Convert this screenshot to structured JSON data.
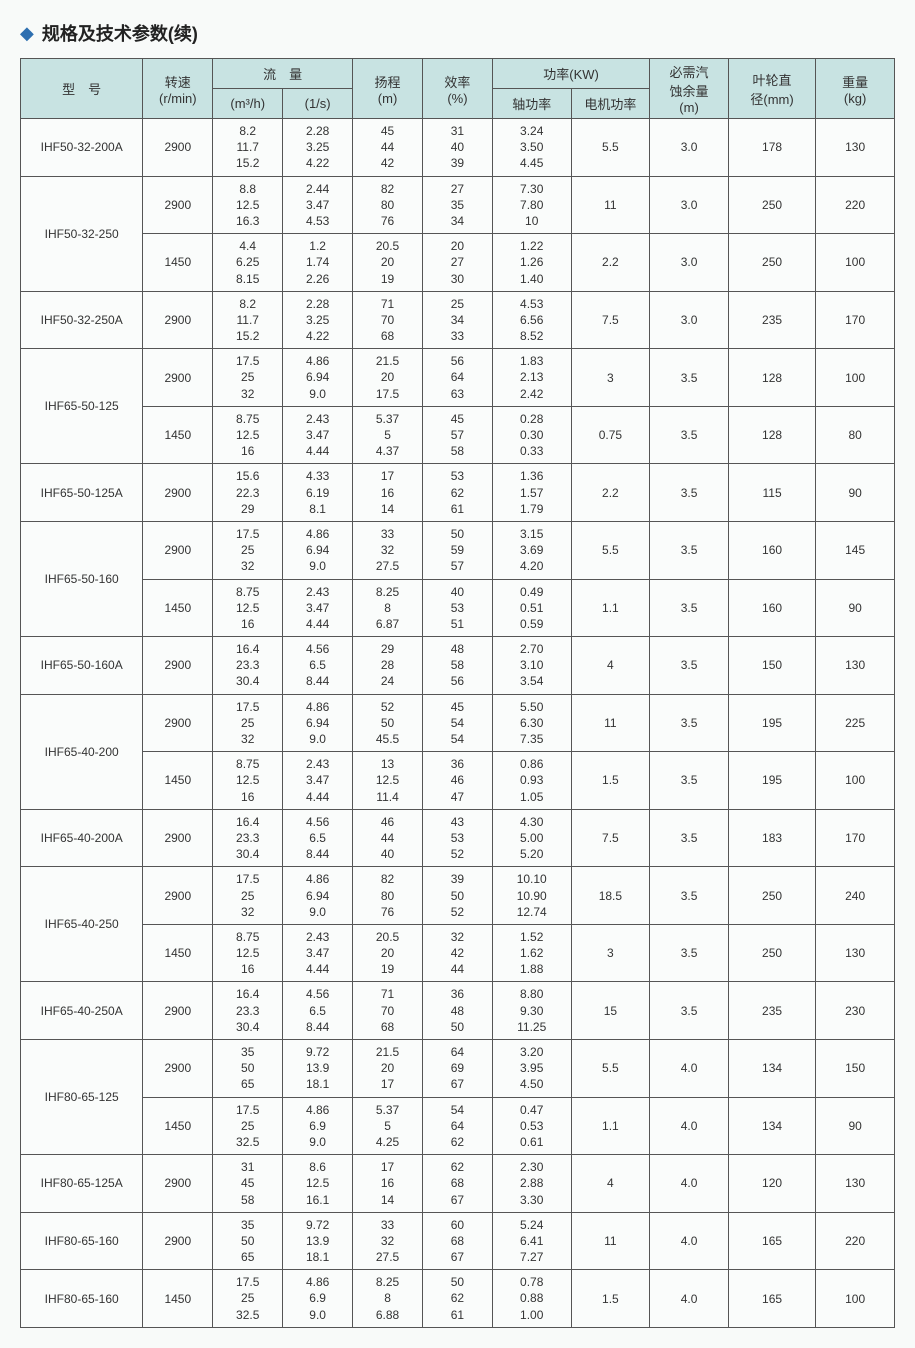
{
  "title": "规格及技术参数(续)",
  "headers": {
    "model": "型　号",
    "rpm": "转速\n(r/min)",
    "flow": "流　量",
    "flow_m3h": "(m³/h)",
    "flow_ls": "(1/s)",
    "head": "扬程\n(m)",
    "eff": "效率\n(%)",
    "power": "功率(KW)",
    "shaft": "轴功率",
    "motor": "电机功率",
    "npsh": "必需汽\n蚀余量\n(m)",
    "impeller": "叶轮直\n径(mm)",
    "weight": "重量\n(kg)"
  },
  "rows": [
    {
      "model": "IHF50-32-200A",
      "rpm": "2900",
      "m3h": [
        "8.2",
        "11.7",
        "15.2"
      ],
      "ls": [
        "2.28",
        "3.25",
        "4.22"
      ],
      "head": [
        "45",
        "44",
        "42"
      ],
      "eff": [
        "31",
        "40",
        "39"
      ],
      "shaft": [
        "3.24",
        "3.50",
        "4.45"
      ],
      "motor": "5.5",
      "npsh": "3.0",
      "imp": "178",
      "wt": "130"
    },
    {
      "model": "IHF50-32-250",
      "span": 2,
      "rpm": "2900",
      "m3h": [
        "8.8",
        "12.5",
        "16.3"
      ],
      "ls": [
        "2.44",
        "3.47",
        "4.53"
      ],
      "head": [
        "82",
        "80",
        "76"
      ],
      "eff": [
        "27",
        "35",
        "34"
      ],
      "shaft": [
        "7.30",
        "7.80",
        "10"
      ],
      "motor": "11",
      "npsh": "3.0",
      "imp": "250",
      "wt": "220"
    },
    {
      "rpm": "1450",
      "m3h": [
        "4.4",
        "6.25",
        "8.15"
      ],
      "ls": [
        "1.2",
        "1.74",
        "2.26"
      ],
      "head": [
        "20.5",
        "20",
        "19"
      ],
      "eff": [
        "20",
        "27",
        "30"
      ],
      "shaft": [
        "1.22",
        "1.26",
        "1.40"
      ],
      "motor": "2.2",
      "npsh": "3.0",
      "imp": "250",
      "wt": "100"
    },
    {
      "model": "IHF50-32-250A",
      "rpm": "2900",
      "m3h": [
        "8.2",
        "11.7",
        "15.2"
      ],
      "ls": [
        "2.28",
        "3.25",
        "4.22"
      ],
      "head": [
        "71",
        "70",
        "68"
      ],
      "eff": [
        "25",
        "34",
        "33"
      ],
      "shaft": [
        "4.53",
        "6.56",
        "8.52"
      ],
      "motor": "7.5",
      "npsh": "3.0",
      "imp": "235",
      "wt": "170"
    },
    {
      "model": "IHF65-50-125",
      "span": 2,
      "rpm": "2900",
      "m3h": [
        "17.5",
        "25",
        "32"
      ],
      "ls": [
        "4.86",
        "6.94",
        "9.0"
      ],
      "head": [
        "21.5",
        "20",
        "17.5"
      ],
      "eff": [
        "56",
        "64",
        "63"
      ],
      "shaft": [
        "1.83",
        "2.13",
        "2.42"
      ],
      "motor": "3",
      "npsh": "3.5",
      "imp": "128",
      "wt": "100"
    },
    {
      "rpm": "1450",
      "m3h": [
        "8.75",
        "12.5",
        "16"
      ],
      "ls": [
        "2.43",
        "3.47",
        "4.44"
      ],
      "head": [
        "5.37",
        "5",
        "4.37"
      ],
      "eff": [
        "45",
        "57",
        "58"
      ],
      "shaft": [
        "0.28",
        "0.30",
        "0.33"
      ],
      "motor": "0.75",
      "npsh": "3.5",
      "imp": "128",
      "wt": "80"
    },
    {
      "model": "IHF65-50-125A",
      "rpm": "2900",
      "m3h": [
        "15.6",
        "22.3",
        "29"
      ],
      "ls": [
        "4.33",
        "6.19",
        "8.1"
      ],
      "head": [
        "17",
        "16",
        "14"
      ],
      "eff": [
        "53",
        "62",
        "61"
      ],
      "shaft": [
        "1.36",
        "1.57",
        "1.79"
      ],
      "motor": "2.2",
      "npsh": "3.5",
      "imp": "115",
      "wt": "90"
    },
    {
      "model": "IHF65-50-160",
      "span": 2,
      "rpm": "2900",
      "m3h": [
        "17.5",
        "25",
        "32"
      ],
      "ls": [
        "4.86",
        "6.94",
        "9.0"
      ],
      "head": [
        "33",
        "32",
        "27.5"
      ],
      "eff": [
        "50",
        "59",
        "57"
      ],
      "shaft": [
        "3.15",
        "3.69",
        "4.20"
      ],
      "motor": "5.5",
      "npsh": "3.5",
      "imp": "160",
      "wt": "145"
    },
    {
      "rpm": "1450",
      "m3h": [
        "8.75",
        "12.5",
        "16"
      ],
      "ls": [
        "2.43",
        "3.47",
        "4.44"
      ],
      "head": [
        "8.25",
        "8",
        "6.87"
      ],
      "eff": [
        "40",
        "53",
        "51"
      ],
      "shaft": [
        "0.49",
        "0.51",
        "0.59"
      ],
      "motor": "1.1",
      "npsh": "3.5",
      "imp": "160",
      "wt": "90"
    },
    {
      "model": "IHF65-50-160A",
      "rpm": "2900",
      "m3h": [
        "16.4",
        "23.3",
        "30.4"
      ],
      "ls": [
        "4.56",
        "6.5",
        "8.44"
      ],
      "head": [
        "29",
        "28",
        "24"
      ],
      "eff": [
        "48",
        "58",
        "56"
      ],
      "shaft": [
        "2.70",
        "3.10",
        "3.54"
      ],
      "motor": "4",
      "npsh": "3.5",
      "imp": "150",
      "wt": "130"
    },
    {
      "model": "IHF65-40-200",
      "span": 2,
      "rpm": "2900",
      "m3h": [
        "17.5",
        "25",
        "32"
      ],
      "ls": [
        "4.86",
        "6.94",
        "9.0"
      ],
      "head": [
        "52",
        "50",
        "45.5"
      ],
      "eff": [
        "45",
        "54",
        "54"
      ],
      "shaft": [
        "5.50",
        "6.30",
        "7.35"
      ],
      "motor": "11",
      "npsh": "3.5",
      "imp": "195",
      "wt": "225"
    },
    {
      "rpm": "1450",
      "m3h": [
        "8.75",
        "12.5",
        "16"
      ],
      "ls": [
        "2.43",
        "3.47",
        "4.44"
      ],
      "head": [
        "13",
        "12.5",
        "11.4"
      ],
      "eff": [
        "36",
        "46",
        "47"
      ],
      "shaft": [
        "0.86",
        "0.93",
        "1.05"
      ],
      "motor": "1.5",
      "npsh": "3.5",
      "imp": "195",
      "wt": "100"
    },
    {
      "model": "IHF65-40-200A",
      "rpm": "2900",
      "m3h": [
        "16.4",
        "23.3",
        "30.4"
      ],
      "ls": [
        "4.56",
        "6.5",
        "8.44"
      ],
      "head": [
        "46",
        "44",
        "40"
      ],
      "eff": [
        "43",
        "53",
        "52"
      ],
      "shaft": [
        "4.30",
        "5.00",
        "5.20"
      ],
      "motor": "7.5",
      "npsh": "3.5",
      "imp": "183",
      "wt": "170"
    },
    {
      "model": "IHF65-40-250",
      "span": 2,
      "rpm": "2900",
      "m3h": [
        "17.5",
        "25",
        "32"
      ],
      "ls": [
        "4.86",
        "6.94",
        "9.0"
      ],
      "head": [
        "82",
        "80",
        "76"
      ],
      "eff": [
        "39",
        "50",
        "52"
      ],
      "shaft": [
        "10.10",
        "10.90",
        "12.74"
      ],
      "motor": "18.5",
      "npsh": "3.5",
      "imp": "250",
      "wt": "240"
    },
    {
      "rpm": "1450",
      "m3h": [
        "8.75",
        "12.5",
        "16"
      ],
      "ls": [
        "2.43",
        "3.47",
        "4.44"
      ],
      "head": [
        "20.5",
        "20",
        "19"
      ],
      "eff": [
        "32",
        "42",
        "44"
      ],
      "shaft": [
        "1.52",
        "1.62",
        "1.88"
      ],
      "motor": "3",
      "npsh": "3.5",
      "imp": "250",
      "wt": "130"
    },
    {
      "model": "IHF65-40-250A",
      "rpm": "2900",
      "m3h": [
        "16.4",
        "23.3",
        "30.4"
      ],
      "ls": [
        "4.56",
        "6.5",
        "8.44"
      ],
      "head": [
        "71",
        "70",
        "68"
      ],
      "eff": [
        "36",
        "48",
        "50"
      ],
      "shaft": [
        "8.80",
        "9.30",
        "11.25"
      ],
      "motor": "15",
      "npsh": "3.5",
      "imp": "235",
      "wt": "230"
    },
    {
      "model": "IHF80-65-125",
      "span": 2,
      "rpm": "2900",
      "m3h": [
        "35",
        "50",
        "65"
      ],
      "ls": [
        "9.72",
        "13.9",
        "18.1"
      ],
      "head": [
        "21.5",
        "20",
        "17"
      ],
      "eff": [
        "64",
        "69",
        "67"
      ],
      "shaft": [
        "3.20",
        "3.95",
        "4.50"
      ],
      "motor": "5.5",
      "npsh": "4.0",
      "imp": "134",
      "wt": "150"
    },
    {
      "rpm": "1450",
      "m3h": [
        "17.5",
        "25",
        "32.5"
      ],
      "ls": [
        "4.86",
        "6.9",
        "9.0"
      ],
      "head": [
        "5.37",
        "5",
        "4.25"
      ],
      "eff": [
        "54",
        "64",
        "62"
      ],
      "shaft": [
        "0.47",
        "0.53",
        "0.61"
      ],
      "motor": "1.1",
      "npsh": "4.0",
      "imp": "134",
      "wt": "90"
    },
    {
      "model": "IHF80-65-125A",
      "rpm": "2900",
      "m3h": [
        "31",
        "45",
        "58"
      ],
      "ls": [
        "8.6",
        "12.5",
        "16.1"
      ],
      "head": [
        "17",
        "16",
        "14"
      ],
      "eff": [
        "62",
        "68",
        "67"
      ],
      "shaft": [
        "2.30",
        "2.88",
        "3.30"
      ],
      "motor": "4",
      "npsh": "4.0",
      "imp": "120",
      "wt": "130"
    },
    {
      "model": "IHF80-65-160",
      "rpm": "2900",
      "m3h": [
        "35",
        "50",
        "65"
      ],
      "ls": [
        "9.72",
        "13.9",
        "18.1"
      ],
      "head": [
        "33",
        "32",
        "27.5"
      ],
      "eff": [
        "60",
        "68",
        "67"
      ],
      "shaft": [
        "5.24",
        "6.41",
        "7.27"
      ],
      "motor": "11",
      "npsh": "4.0",
      "imp": "165",
      "wt": "220"
    },
    {
      "model": "IHF80-65-160",
      "rpm": "1450",
      "m3h": [
        "17.5",
        "25",
        "32.5"
      ],
      "ls": [
        "4.86",
        "6.9",
        "9.0"
      ],
      "head": [
        "8.25",
        "8",
        "6.88"
      ],
      "eff": [
        "50",
        "62",
        "61"
      ],
      "shaft": [
        "0.78",
        "0.88",
        "1.00"
      ],
      "motor": "1.5",
      "npsh": "4.0",
      "imp": "165",
      "wt": "100"
    }
  ]
}
